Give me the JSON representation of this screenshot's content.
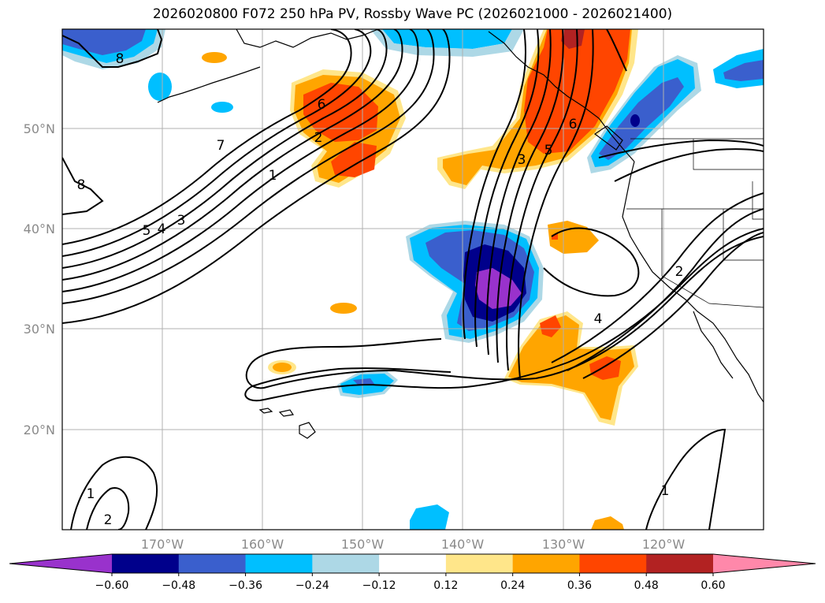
{
  "chart_data": {
    "type": "contour_map",
    "title": "2026020800 F072 250 hPa PV, Rossby Wave PC (2026021000 - 2026021400)",
    "fill_variable": "Rossby Wave PC",
    "contour_variable": "250 hPa PV",
    "lat_ticks": [
      "50°N",
      "40°N",
      "30°N",
      "20°N"
    ],
    "lon_ticks": [
      "170°W",
      "160°W",
      "150°W",
      "140°W",
      "130°W",
      "120°W"
    ],
    "lat_range": [
      10,
      60
    ],
    "lon_range": [
      -180,
      -110
    ],
    "colorbar": {
      "ticks": [
        "−0.60",
        "−0.48",
        "−0.36",
        "−0.24",
        "−0.12",
        "0.12",
        "0.24",
        "0.36",
        "0.48",
        "0.60"
      ],
      "levels": [
        -0.6,
        -0.48,
        -0.36,
        -0.24,
        -0.12,
        0.12,
        0.24,
        0.36,
        0.48,
        0.6
      ],
      "colors": [
        "#9932cc",
        "#00008b",
        "#3a5fcd",
        "#00bfff",
        "#add8e6",
        "#ffffff",
        "#ffe68a",
        "#ffa500",
        "#ff4500",
        "#b22222",
        "#ff88aa"
      ]
    },
    "contour_labels": [
      "8",
      "6",
      "2",
      "7",
      "1",
      "5",
      "4",
      "3",
      "8",
      "6",
      "5",
      "3",
      "4",
      "2",
      "1",
      "1",
      "2"
    ]
  }
}
